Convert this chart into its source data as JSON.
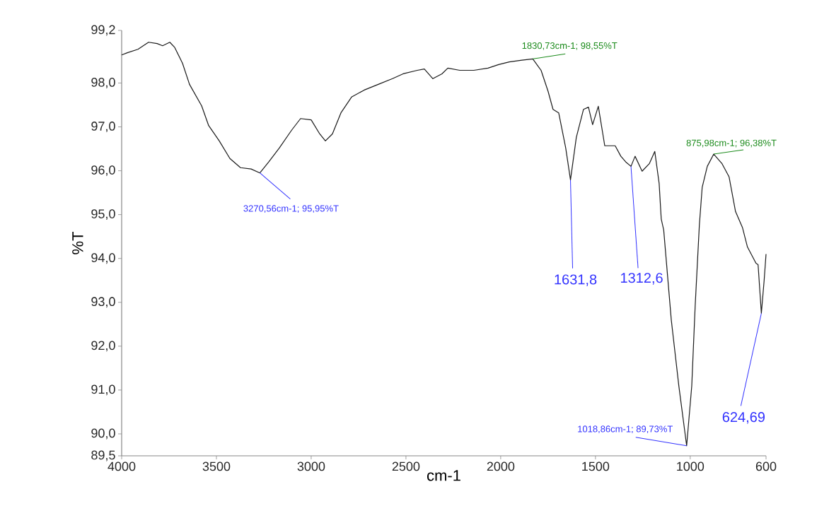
{
  "chart_data": {
    "type": "line",
    "xlabel": "cm-1",
    "ylabel": "%T",
    "color": "#1a1a1a",
    "x": [
      4000,
      3970,
      3914,
      3858,
      3813,
      3784,
      3746,
      3720,
      3679,
      3642,
      3578,
      3541,
      3485,
      3429,
      3373,
      3317,
      3270.56,
      3224,
      3168,
      3104,
      3056,
      3000,
      2955,
      2925,
      2888,
      2843,
      2787,
      2720,
      2646,
      2571,
      2515,
      2440,
      2403,
      2358,
      2310,
      2279,
      2216,
      2142,
      2067,
      2011,
      1955,
      1888,
      1830.73,
      1787,
      1750,
      1724,
      1694,
      1657,
      1631.8,
      1601,
      1563,
      1537,
      1515,
      1485,
      1451,
      1396,
      1366,
      1340,
      1312.6,
      1291,
      1254,
      1216,
      1187,
      1164,
      1153,
      1140,
      1100,
      1060,
      1018.86,
      992,
      974,
      952,
      937,
      910,
      875.98,
      832,
      795,
      761,
      724,
      698,
      653,
      642,
      624.69,
      610,
      600
    ],
    "values": [
      98.64,
      98.69,
      98.77,
      98.93,
      98.9,
      98.85,
      98.93,
      98.81,
      98.45,
      97.97,
      97.48,
      97.03,
      96.68,
      96.28,
      96.07,
      96.04,
      95.95,
      96.2,
      96.52,
      96.92,
      97.19,
      97.16,
      96.84,
      96.68,
      96.84,
      97.32,
      97.68,
      97.84,
      97.97,
      98.1,
      98.21,
      98.29,
      98.32,
      98.1,
      98.21,
      98.34,
      98.29,
      98.29,
      98.34,
      98.42,
      98.48,
      98.52,
      98.55,
      98.29,
      97.81,
      97.4,
      97.32,
      96.52,
      95.79,
      96.76,
      97.4,
      97.45,
      97.05,
      97.47,
      96.57,
      96.57,
      96.33,
      96.2,
      96.1,
      96.33,
      95.99,
      96.16,
      96.44,
      95.71,
      94.9,
      94.65,
      92.6,
      91.09,
      89.73,
      91.09,
      92.91,
      94.75,
      95.62,
      96.1,
      96.38,
      96.16,
      95.86,
      95.07,
      94.7,
      94.26,
      93.89,
      93.86,
      92.75,
      93.5,
      94.1
    ],
    "xlim": [
      4000,
      600
    ],
    "xticks": [
      4000,
      3500,
      3000,
      2500,
      2000,
      1500,
      1000,
      600
    ],
    "ylim": [
      89.5,
      99.2
    ],
    "yticks": [
      {
        "value": 89.5,
        "label": "89,5"
      },
      {
        "value": 90,
        "label": "90,0"
      },
      {
        "value": 91,
        "label": "91,0"
      },
      {
        "value": 92,
        "label": "92,0"
      },
      {
        "value": 93,
        "label": "93,0"
      },
      {
        "value": 94,
        "label": "94,0"
      },
      {
        "value": 95,
        "label": "95,0"
      },
      {
        "value": 96,
        "label": "96,0"
      },
      {
        "value": 97,
        "label": "97,0"
      },
      {
        "value": 98,
        "label": "98,0"
      },
      {
        "value": 99.2,
        "label": "99,2"
      }
    ],
    "annotations": [
      {
        "text": "3270,56cm-1; 95,95%T",
        "x": 3270.56,
        "y": 95.95
      },
      {
        "text": "1830,73cm-1; 98,55%T",
        "x": 1830.73,
        "y": 98.55
      },
      {
        "text": "875,98cm-1; 96,38%T",
        "x": 875.98,
        "y": 96.38
      },
      {
        "text": "1018,86cm-1; 89,73%T",
        "x": 1018.86,
        "y": 89.73
      },
      {
        "text": "1631,8",
        "x": 1631.8,
        "y": 95.79
      },
      {
        "text": "1312,6",
        "x": 1312.6,
        "y": 96.1
      },
      {
        "text": "624,69",
        "x": 624.69,
        "y": 92.75
      }
    ]
  }
}
